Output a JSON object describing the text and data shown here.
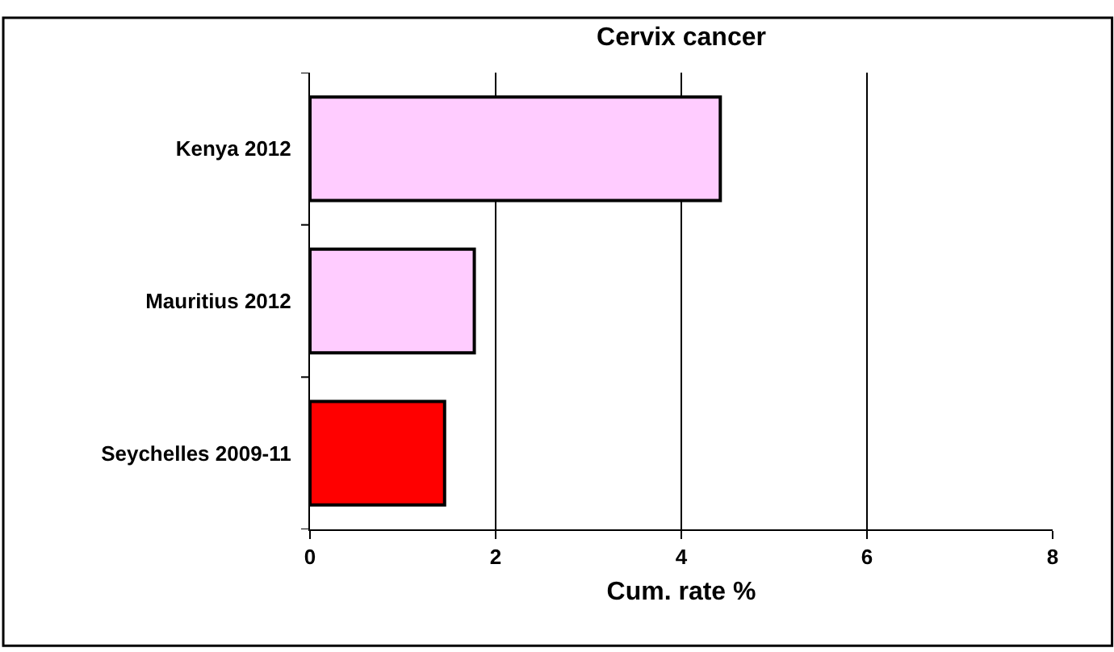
{
  "chart_data": {
    "type": "bar",
    "orientation": "horizontal",
    "title": "Cervix cancer",
    "xlabel": "Cum. rate %",
    "categories": [
      "Kenya 2012",
      "Mauritius 2012",
      "Seychelles 2009-11"
    ],
    "values": [
      4.42,
      1.77,
      1.45
    ],
    "colors": [
      "#ffccff",
      "#ffccff",
      "#ff0000"
    ],
    "xlim": [
      0,
      8
    ],
    "xticks": [
      0,
      2,
      4,
      6,
      8
    ],
    "grid": "x"
  }
}
